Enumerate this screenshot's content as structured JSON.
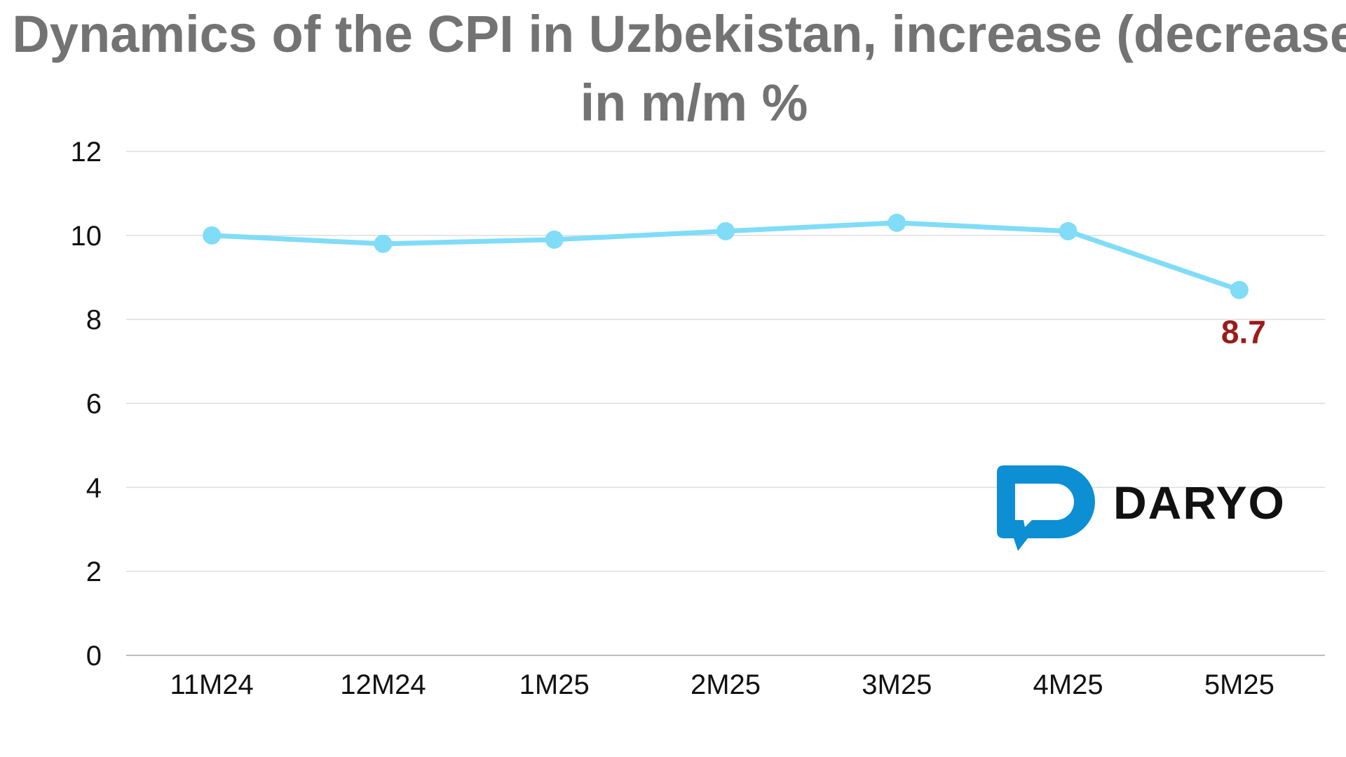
{
  "chart_data": {
    "type": "line",
    "title": "Dynamics of the CPI in Uzbekistan, increase (decrease) in m/m %",
    "categories": [
      "11M24",
      "12M24",
      "1M25",
      "2M25",
      "3M25",
      "4M25",
      "5M25"
    ],
    "series": [
      {
        "values": [
          10.0,
          9.8,
          9.9,
          10.1,
          10.3,
          10.1,
          8.7
        ]
      }
    ],
    "yticks": [
      "0",
      "2",
      "4",
      "6",
      "8",
      "10",
      "12"
    ],
    "ylim": [
      0,
      12
    ],
    "grid": true,
    "line_color": "#80dcf7",
    "label_color": "#9b1c1c",
    "annotations": [
      {
        "category": "5M25",
        "value": 8.7,
        "text": "8.7"
      }
    ]
  },
  "logo": {
    "text": "DARYO",
    "icon": "speech-bubble-d-icon",
    "color": "#0d8fd3"
  }
}
